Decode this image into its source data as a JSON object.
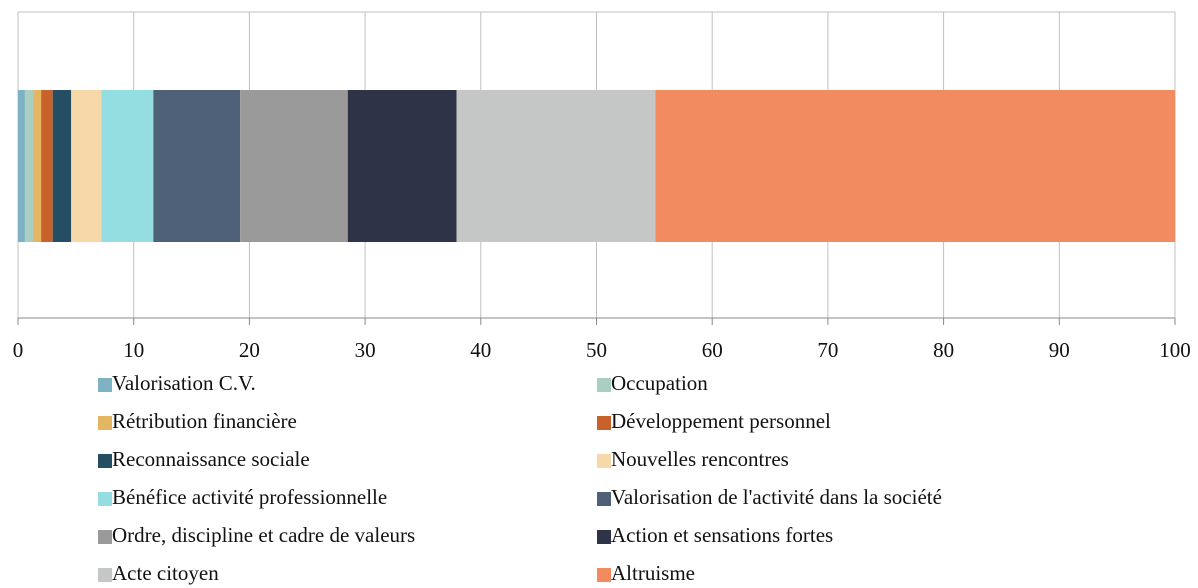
{
  "chart_data": {
    "type": "stacked-bar-horizontal",
    "xlim": [
      0,
      100
    ],
    "xticks": [
      0,
      10,
      20,
      30,
      40,
      50,
      60,
      70,
      80,
      90,
      100
    ],
    "grid": true,
    "legend": "bottom",
    "series": [
      {
        "name": "Valorisation C.V.",
        "color": "#7fb2c2",
        "values": [
          0.6
        ]
      },
      {
        "name": "Occupation",
        "color": "#a9cfc3",
        "values": [
          0.7
        ]
      },
      {
        "name": "Rétribution financière",
        "color": "#e4b662",
        "values": [
          0.7
        ]
      },
      {
        "name": "Développement personnel",
        "color": "#c8622a",
        "values": [
          1.0
        ]
      },
      {
        "name": "Reconnaissance sociale",
        "color": "#254e63",
        "values": [
          1.6
        ]
      },
      {
        "name": "Nouvelles rencontres",
        "color": "#f7d8a9",
        "values": [
          2.6
        ]
      },
      {
        "name": "Bénéfice activité professionnelle",
        "color": "#94dde0",
        "values": [
          4.5
        ]
      },
      {
        "name": "Valorisation de l'activité dans la société",
        "color": "#4f6079",
        "values": [
          7.5
        ]
      },
      {
        "name": "Ordre, discipline et cadre de valeurs",
        "color": "#9a9a9a",
        "values": [
          9.3
        ]
      },
      {
        "name": "Action et sensations fortes",
        "color": "#2f3347",
        "values": [
          9.4
        ]
      },
      {
        "name": "Acte citoyen",
        "color": "#c5c7c6",
        "values": [
          17.2
        ]
      },
      {
        "name": "Altruisme",
        "color": "#f28b5f",
        "values": [
          44.9
        ]
      }
    ]
  }
}
